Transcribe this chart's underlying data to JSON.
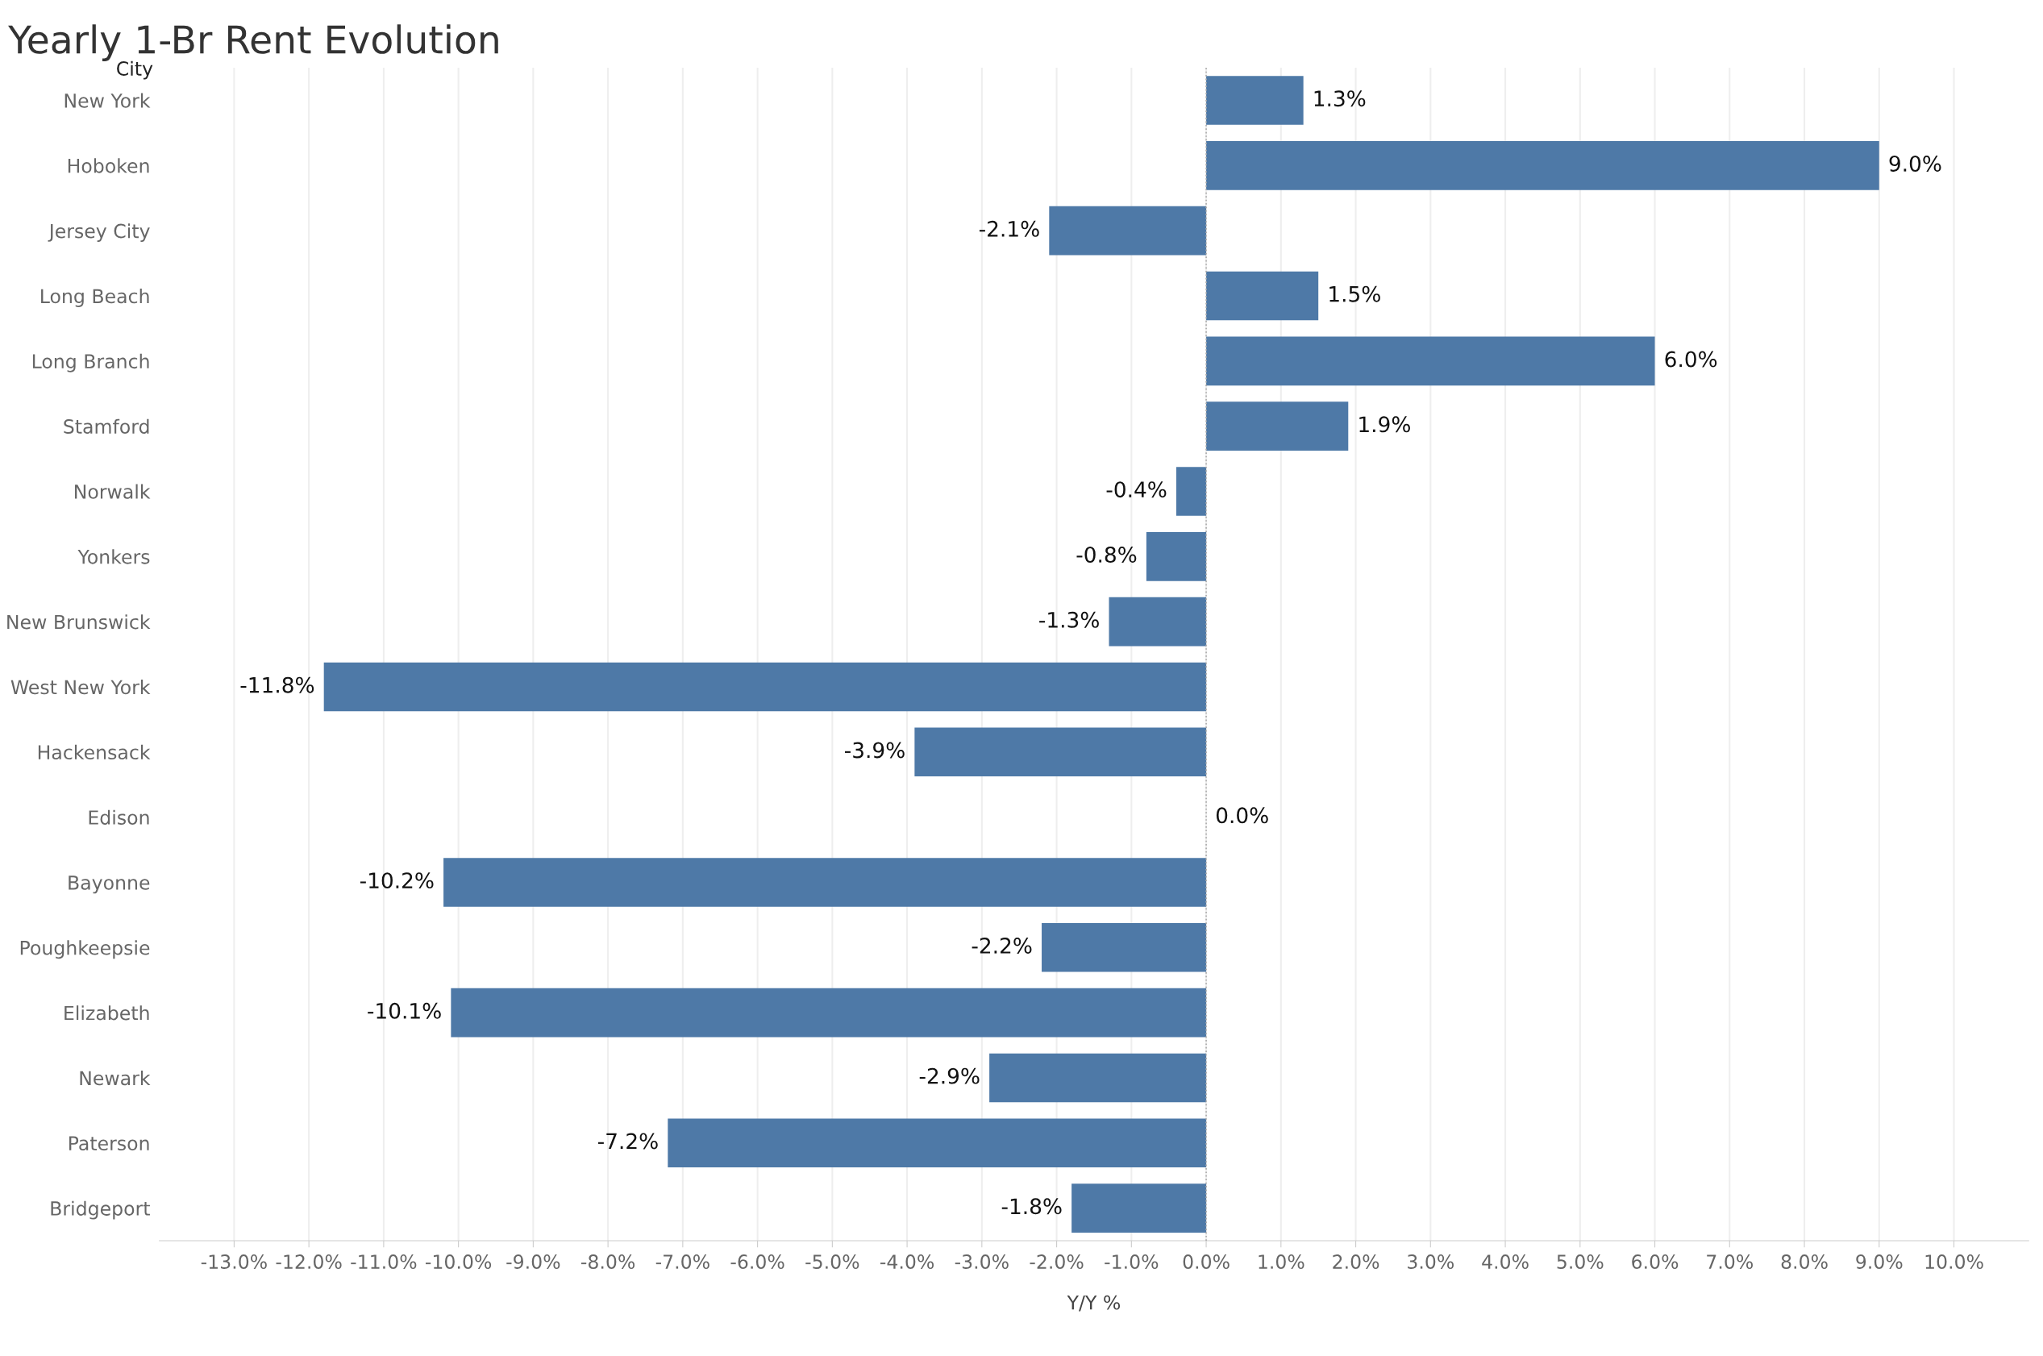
{
  "chart_data": {
    "type": "bar",
    "orientation": "horizontal",
    "title": "Yearly 1-Br Rent Evolution",
    "ylabel": "City",
    "xlabel": "Y/Y %",
    "categories": [
      "New York",
      "Hoboken",
      "Jersey City",
      "Long Beach",
      "Long Branch",
      "Stamford",
      "Norwalk",
      "Yonkers",
      "New Brunswick",
      "West New York",
      "Hackensack",
      "Edison",
      "Bayonne",
      "Poughkeepsie",
      "Elizabeth",
      "Newark",
      "Paterson",
      "Bridgeport"
    ],
    "values": [
      1.3,
      9.0,
      -2.1,
      1.5,
      6.0,
      1.9,
      -0.4,
      -0.8,
      -1.3,
      -11.8,
      -3.9,
      0.0,
      -10.2,
      -2.2,
      -10.1,
      -2.9,
      -7.2,
      -1.8
    ],
    "value_labels": [
      "1.3%",
      "9.0%",
      "-2.1%",
      "1.5%",
      "6.0%",
      "1.9%",
      "-0.4%",
      "-0.8%",
      "-1.3%",
      "-11.8%",
      "-3.9%",
      "0.0%",
      "-10.2%",
      "-2.2%",
      "-10.1%",
      "-2.9%",
      "-7.2%",
      "-1.8%"
    ],
    "color": "#4e79a7",
    "xlim": [
      -14,
      11
    ],
    "xticks": [
      {
        "value": -13,
        "label": "-13.0%"
      },
      {
        "value": -12,
        "label": "-12.0%"
      },
      {
        "value": -11,
        "label": "-11.0%"
      },
      {
        "value": -10,
        "label": "-10.0%"
      },
      {
        "value": -9,
        "label": "-9.0%"
      },
      {
        "value": -8,
        "label": "-8.0%"
      },
      {
        "value": -7,
        "label": "-7.0%"
      },
      {
        "value": -6,
        "label": "-6.0%"
      },
      {
        "value": -5,
        "label": "-5.0%"
      },
      {
        "value": -4,
        "label": "-4.0%"
      },
      {
        "value": -3,
        "label": "-3.0%"
      },
      {
        "value": -2,
        "label": "-2.0%"
      },
      {
        "value": -1,
        "label": "-1.0%"
      },
      {
        "value": 0,
        "label": "0.0%"
      },
      {
        "value": 1,
        "label": "1.0%"
      },
      {
        "value": 2,
        "label": "2.0%"
      },
      {
        "value": 3,
        "label": "3.0%"
      },
      {
        "value": 4,
        "label": "4.0%"
      },
      {
        "value": 5,
        "label": "5.0%"
      },
      {
        "value": 6,
        "label": "6.0%"
      },
      {
        "value": 7,
        "label": "7.0%"
      },
      {
        "value": 8,
        "label": "8.0%"
      },
      {
        "value": 9,
        "label": "9.0%"
      },
      {
        "value": 10,
        "label": "10.0%"
      }
    ],
    "ref_lines": [
      {
        "axis": "x",
        "value": 0,
        "color": "#aaaaaa",
        "line_style": "dotted"
      }
    ],
    "grid": "x",
    "legend": false
  }
}
